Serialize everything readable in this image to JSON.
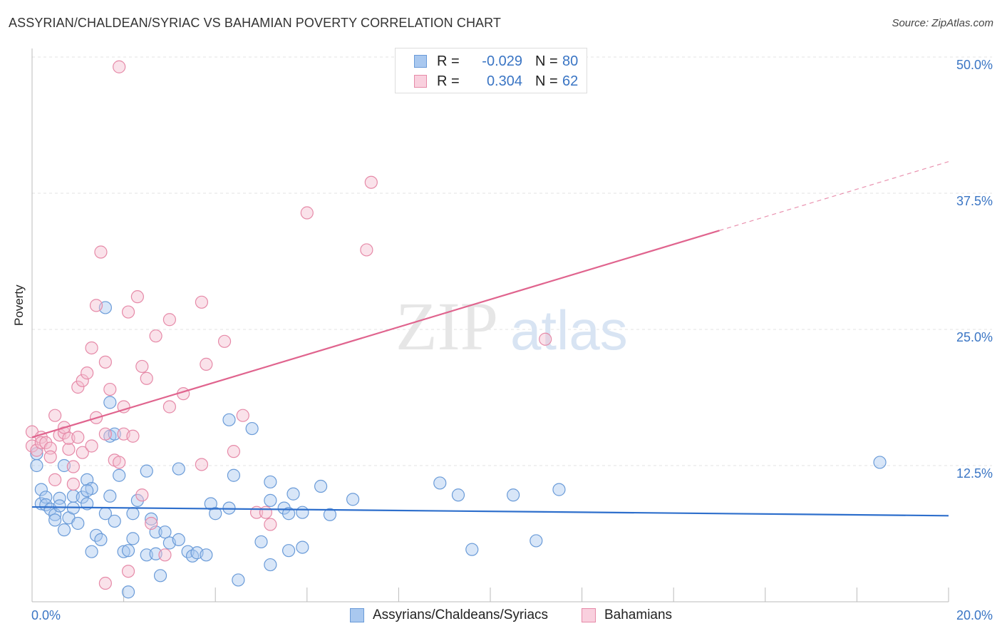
{
  "header": {
    "title": "ASSYRIAN/CHALDEAN/SYRIAC VS BAHAMIAN POVERTY CORRELATION CHART",
    "source": "Source: ZipAtlas.com"
  },
  "legend_top": {
    "rows": [
      {
        "r_label": "R =",
        "r_value": "-0.029",
        "n_label": "N =",
        "n_value": "80"
      },
      {
        "r_label": "R =",
        "r_value": "0.304",
        "n_label": "N =",
        "n_value": "62"
      }
    ]
  },
  "legend_bottom": {
    "items": [
      {
        "label": "Assyrians/Chaldeans/Syriacs"
      },
      {
        "label": "Bahamians"
      }
    ]
  },
  "watermark": {
    "zip": "ZIP",
    "atlas": "atlas"
  },
  "colors": {
    "blue_fill": "#a9c8ef",
    "blue_stroke": "#6a9bd8",
    "blue_line": "#2e6fcc",
    "pink_fill": "#f5bfd0",
    "pink_stroke": "#e68aa8",
    "pink_line": "#e0648e",
    "axis_text": "#3a75c4"
  },
  "chart_data": {
    "type": "scatter",
    "title": "ASSYRIAN/CHALDEAN/SYRIAC VS BAHAMIAN POVERTY CORRELATION CHART",
    "xlabel": "",
    "ylabel": "Poverty",
    "xlim": [
      0,
      20
    ],
    "ylim": [
      0,
      50
    ],
    "x_tick_labels": [
      {
        "value": 0,
        "label": "0.0%"
      },
      {
        "value": 20,
        "label": "20.0%"
      }
    ],
    "y_tick_labels": [
      {
        "value": 12.5,
        "label": "12.5%"
      },
      {
        "value": 25,
        "label": "25.0%"
      },
      {
        "value": 37.5,
        "label": "37.5%"
      },
      {
        "value": 50,
        "label": "50.0%"
      }
    ],
    "grid": true,
    "legend": "top-center",
    "series": [
      {
        "name": "Assyrians/Chaldeans/Syriacs",
        "color": "#a9c8ef",
        "trend": {
          "x0": 0,
          "y0": 8.7,
          "x1": 20,
          "y1": 7.9,
          "solid_to": 20
        },
        "points": [
          [
            0.1,
            13.6
          ],
          [
            0.1,
            12.5
          ],
          [
            0.2,
            10.3
          ],
          [
            0.2,
            9.0
          ],
          [
            0.3,
            9.6
          ],
          [
            0.3,
            8.9
          ],
          [
            0.4,
            8.5
          ],
          [
            0.5,
            8.0
          ],
          [
            0.5,
            7.5
          ],
          [
            0.6,
            9.5
          ],
          [
            0.6,
            8.8
          ],
          [
            0.7,
            6.6
          ],
          [
            0.7,
            12.5
          ],
          [
            0.8,
            7.7
          ],
          [
            0.9,
            8.6
          ],
          [
            0.9,
            9.7
          ],
          [
            1.0,
            7.2
          ],
          [
            1.1,
            9.6
          ],
          [
            1.2,
            11.2
          ],
          [
            1.2,
            9.0
          ],
          [
            1.3,
            10.4
          ],
          [
            1.3,
            4.6
          ],
          [
            1.4,
            6.1
          ],
          [
            1.5,
            5.7
          ],
          [
            1.6,
            8.1
          ],
          [
            1.6,
            27.0
          ],
          [
            1.7,
            9.7
          ],
          [
            1.7,
            15.2
          ],
          [
            1.8,
            15.4
          ],
          [
            1.8,
            7.4
          ],
          [
            1.9,
            11.6
          ],
          [
            2.0,
            4.6
          ],
          [
            2.1,
            4.7
          ],
          [
            2.1,
            0.9
          ],
          [
            2.2,
            5.8
          ],
          [
            2.2,
            8.1
          ],
          [
            2.3,
            9.3
          ],
          [
            2.5,
            12.0
          ],
          [
            2.5,
            4.3
          ],
          [
            2.6,
            7.6
          ],
          [
            2.7,
            6.4
          ],
          [
            2.7,
            4.4
          ],
          [
            2.8,
            2.4
          ],
          [
            2.9,
            6.4
          ],
          [
            3.0,
            5.4
          ],
          [
            3.2,
            5.7
          ],
          [
            3.2,
            12.2
          ],
          [
            3.4,
            4.6
          ],
          [
            3.5,
            4.2
          ],
          [
            3.6,
            4.5
          ],
          [
            3.8,
            4.3
          ],
          [
            3.9,
            9.0
          ],
          [
            4.0,
            8.1
          ],
          [
            4.3,
            16.7
          ],
          [
            4.3,
            8.6
          ],
          [
            4.4,
            11.6
          ],
          [
            4.5,
            2.0
          ],
          [
            4.8,
            15.9
          ],
          [
            5.0,
            5.5
          ],
          [
            5.2,
            3.4
          ],
          [
            5.2,
            11.0
          ],
          [
            5.2,
            9.3
          ],
          [
            5.5,
            8.6
          ],
          [
            5.6,
            4.7
          ],
          [
            5.6,
            8.1
          ],
          [
            5.7,
            9.9
          ],
          [
            5.9,
            5.0
          ],
          [
            5.9,
            8.2
          ],
          [
            6.3,
            10.6
          ],
          [
            6.5,
            8.0
          ],
          [
            7.0,
            9.4
          ],
          [
            8.9,
            10.9
          ],
          [
            9.3,
            9.8
          ],
          [
            9.6,
            4.8
          ],
          [
            10.5,
            9.8
          ],
          [
            11.0,
            5.6
          ],
          [
            11.5,
            10.3
          ],
          [
            18.5,
            12.8
          ],
          [
            1.7,
            18.3
          ],
          [
            1.2,
            10.2
          ]
        ]
      },
      {
        "name": "Bahamians",
        "color": "#f5bfd0",
        "trend": {
          "x0": 0,
          "y0": 15.1,
          "x1": 20,
          "y1": 40.4,
          "solid_to": 15.0
        },
        "points": [
          [
            0.0,
            15.6
          ],
          [
            0.0,
            14.3
          ],
          [
            0.1,
            13.9
          ],
          [
            0.2,
            15.1
          ],
          [
            0.2,
            14.6
          ],
          [
            0.3,
            14.6
          ],
          [
            0.4,
            14.1
          ],
          [
            0.4,
            13.3
          ],
          [
            0.5,
            17.1
          ],
          [
            0.5,
            11.2
          ],
          [
            0.6,
            15.3
          ],
          [
            0.7,
            15.5
          ],
          [
            0.7,
            16.0
          ],
          [
            0.8,
            14.0
          ],
          [
            0.8,
            15.0
          ],
          [
            0.9,
            12.4
          ],
          [
            0.9,
            10.8
          ],
          [
            1.0,
            15.1
          ],
          [
            1.0,
            19.7
          ],
          [
            1.1,
            20.3
          ],
          [
            1.1,
            13.7
          ],
          [
            1.2,
            21.0
          ],
          [
            1.3,
            23.3
          ],
          [
            1.3,
            14.3
          ],
          [
            1.4,
            16.9
          ],
          [
            1.4,
            27.2
          ],
          [
            1.5,
            32.1
          ],
          [
            1.6,
            22.0
          ],
          [
            1.6,
            15.4
          ],
          [
            1.7,
            19.5
          ],
          [
            1.8,
            13.0
          ],
          [
            1.9,
            12.8
          ],
          [
            1.9,
            49.1
          ],
          [
            2.0,
            15.4
          ],
          [
            2.0,
            17.9
          ],
          [
            2.1,
            26.6
          ],
          [
            2.1,
            2.8
          ],
          [
            2.2,
            15.2
          ],
          [
            2.3,
            28.0
          ],
          [
            2.4,
            21.6
          ],
          [
            2.4,
            9.8
          ],
          [
            2.5,
            20.5
          ],
          [
            2.6,
            7.2
          ],
          [
            2.7,
            24.4
          ],
          [
            2.9,
            4.3
          ],
          [
            3.0,
            25.9
          ],
          [
            3.0,
            17.9
          ],
          [
            3.3,
            19.1
          ],
          [
            3.7,
            27.5
          ],
          [
            3.7,
            12.6
          ],
          [
            3.8,
            21.8
          ],
          [
            4.2,
            23.9
          ],
          [
            4.4,
            13.8
          ],
          [
            4.6,
            17.1
          ],
          [
            4.9,
            8.2
          ],
          [
            5.1,
            8.2
          ],
          [
            5.2,
            7.1
          ],
          [
            6.0,
            35.7
          ],
          [
            7.3,
            32.3
          ],
          [
            7.4,
            38.5
          ],
          [
            11.2,
            24.1
          ],
          [
            1.6,
            1.7
          ]
        ]
      }
    ]
  }
}
